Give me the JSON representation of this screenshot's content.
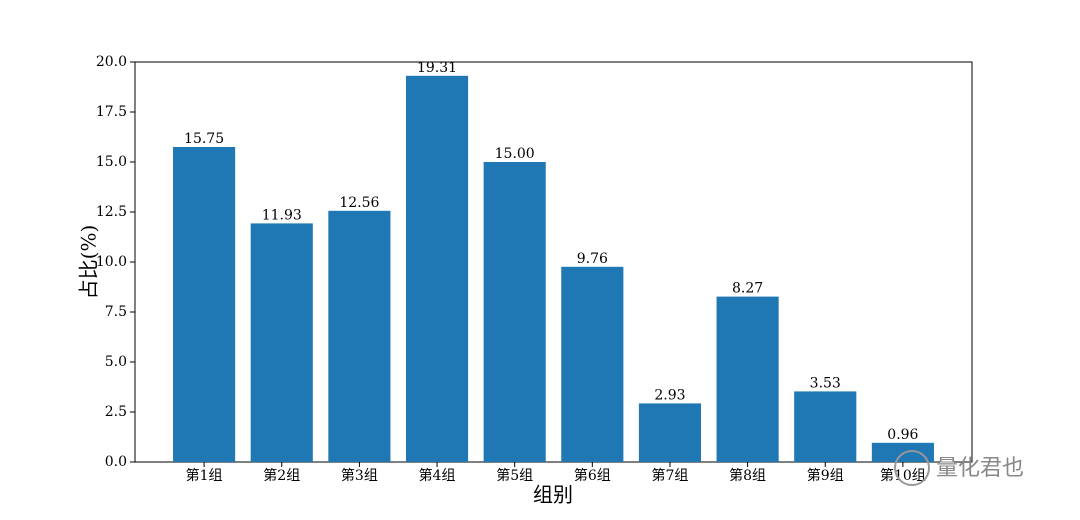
{
  "chart_data": {
    "type": "bar",
    "xlabel": "组别",
    "ylabel": "占比(%)",
    "categories": [
      "第1组",
      "第2组",
      "第3组",
      "第4组",
      "第5组",
      "第6组",
      "第7组",
      "第8组",
      "第9组",
      "第10组"
    ],
    "values": [
      15.75,
      11.93,
      12.56,
      19.31,
      15.0,
      9.76,
      2.93,
      8.27,
      3.53,
      0.96
    ],
    "value_labels": [
      "15.75",
      "11.93",
      "12.56",
      "19.31",
      "15.00",
      "9.76",
      "2.93",
      "8.27",
      "3.53",
      "0.96"
    ],
    "color": "#1f77b4",
    "ylim": [
      0,
      20
    ],
    "yticks": [
      {
        "value": 0,
        "label": "0.0"
      },
      2.5,
      {
        "value": 5,
        "label": "5.0"
      },
      7.5,
      {
        "value": 10,
        "label": "10.0"
      },
      12.5,
      {
        "value": 15,
        "label": "15.0"
      },
      17.5,
      {
        "value": 20,
        "label": "20.0"
      }
    ],
    "grid": false
  },
  "watermark": "量化君也"
}
